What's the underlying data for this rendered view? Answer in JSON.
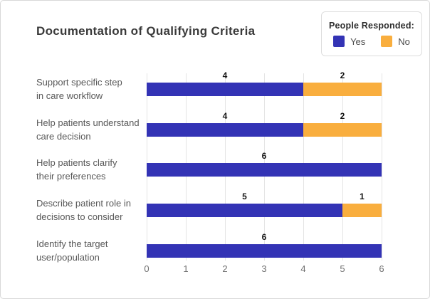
{
  "chart": {
    "title": "Documentation of Qualifying Criteria",
    "legend": {
      "title": "People Responded:",
      "items": [
        {
          "label": "Yes",
          "color": "#3333b5"
        },
        {
          "label": "No",
          "color": "#f9ae3e"
        }
      ]
    }
  },
  "chart_data": {
    "type": "bar",
    "orientation": "horizontal",
    "stacked": true,
    "title": "Documentation of Qualifying Criteria",
    "categories": [
      [
        "Support specific step",
        "in care workflow"
      ],
      [
        "Help patients understand",
        "care decision"
      ],
      [
        "Help patients clarify",
        "their preferences"
      ],
      [
        "Describe patient role in",
        "decisions to consider"
      ],
      [
        "Identify the target",
        "user/population"
      ]
    ],
    "series": [
      {
        "name": "Yes",
        "color": "#3333b5",
        "values": [
          4,
          4,
          6,
          5,
          6
        ]
      },
      {
        "name": "No",
        "color": "#f9ae3e",
        "values": [
          2,
          2,
          0,
          1,
          0
        ]
      }
    ],
    "xlim": [
      0,
      6
    ],
    "xticks": [
      "0",
      "1",
      "2",
      "3",
      "4",
      "5",
      "6"
    ],
    "grid": "vertical",
    "gridline_color": "#e4e4e4",
    "legend_position": "top-right",
    "value_labels": true
  }
}
